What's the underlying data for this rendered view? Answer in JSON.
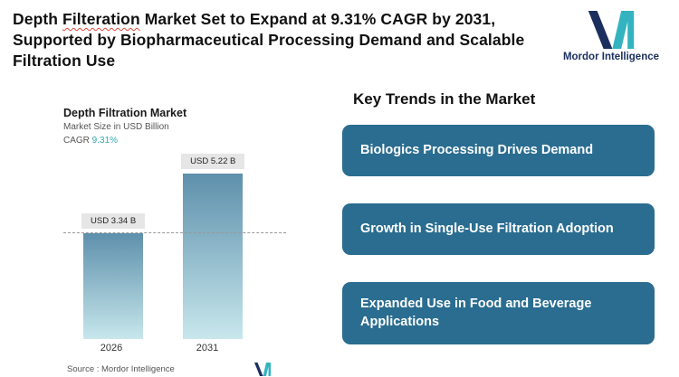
{
  "header": {
    "title_part1": "Depth ",
    "title_misspelled_word": "Filteration",
    "title_part2": " Market Set to Expand at 9.31% CAGR by 2031, Supported by Biopharmaceutical Processing Demand and Scalable Filtration Use"
  },
  "logo": {
    "name": "Mordor Intelligence"
  },
  "chart": {
    "title": "Depth Filtration Market",
    "subtitle": "Market Size in USD Billion",
    "cagr_label": "CAGR ",
    "cagr_value": "9.31%",
    "source": "Source :  Mordor Intelligence"
  },
  "chart_data": {
    "type": "bar",
    "title": "Depth Filtration Market",
    "ylabel": "Market Size in USD Billion",
    "categories": [
      "2026",
      "2031"
    ],
    "values": [
      3.34,
      5.22
    ],
    "value_labels": [
      "USD 3.34 B",
      "USD 5.22 B"
    ],
    "cagr": "9.31%",
    "reference_line": 3.34,
    "grid": false,
    "legend": false,
    "colors": {
      "bar_gradient_top": "#5e90ac",
      "bar_gradient_bottom": "#c7e7ec",
      "accent_teal": "#35a9b7"
    }
  },
  "trends": {
    "heading": "Key Trends in the Market",
    "items": [
      "Biologics Processing Drives Demand",
      "Growth in Single-Use Filtration Adoption",
      "Expanded Use in Food and Beverage Applications"
    ],
    "card_color": "#2a6d90"
  }
}
